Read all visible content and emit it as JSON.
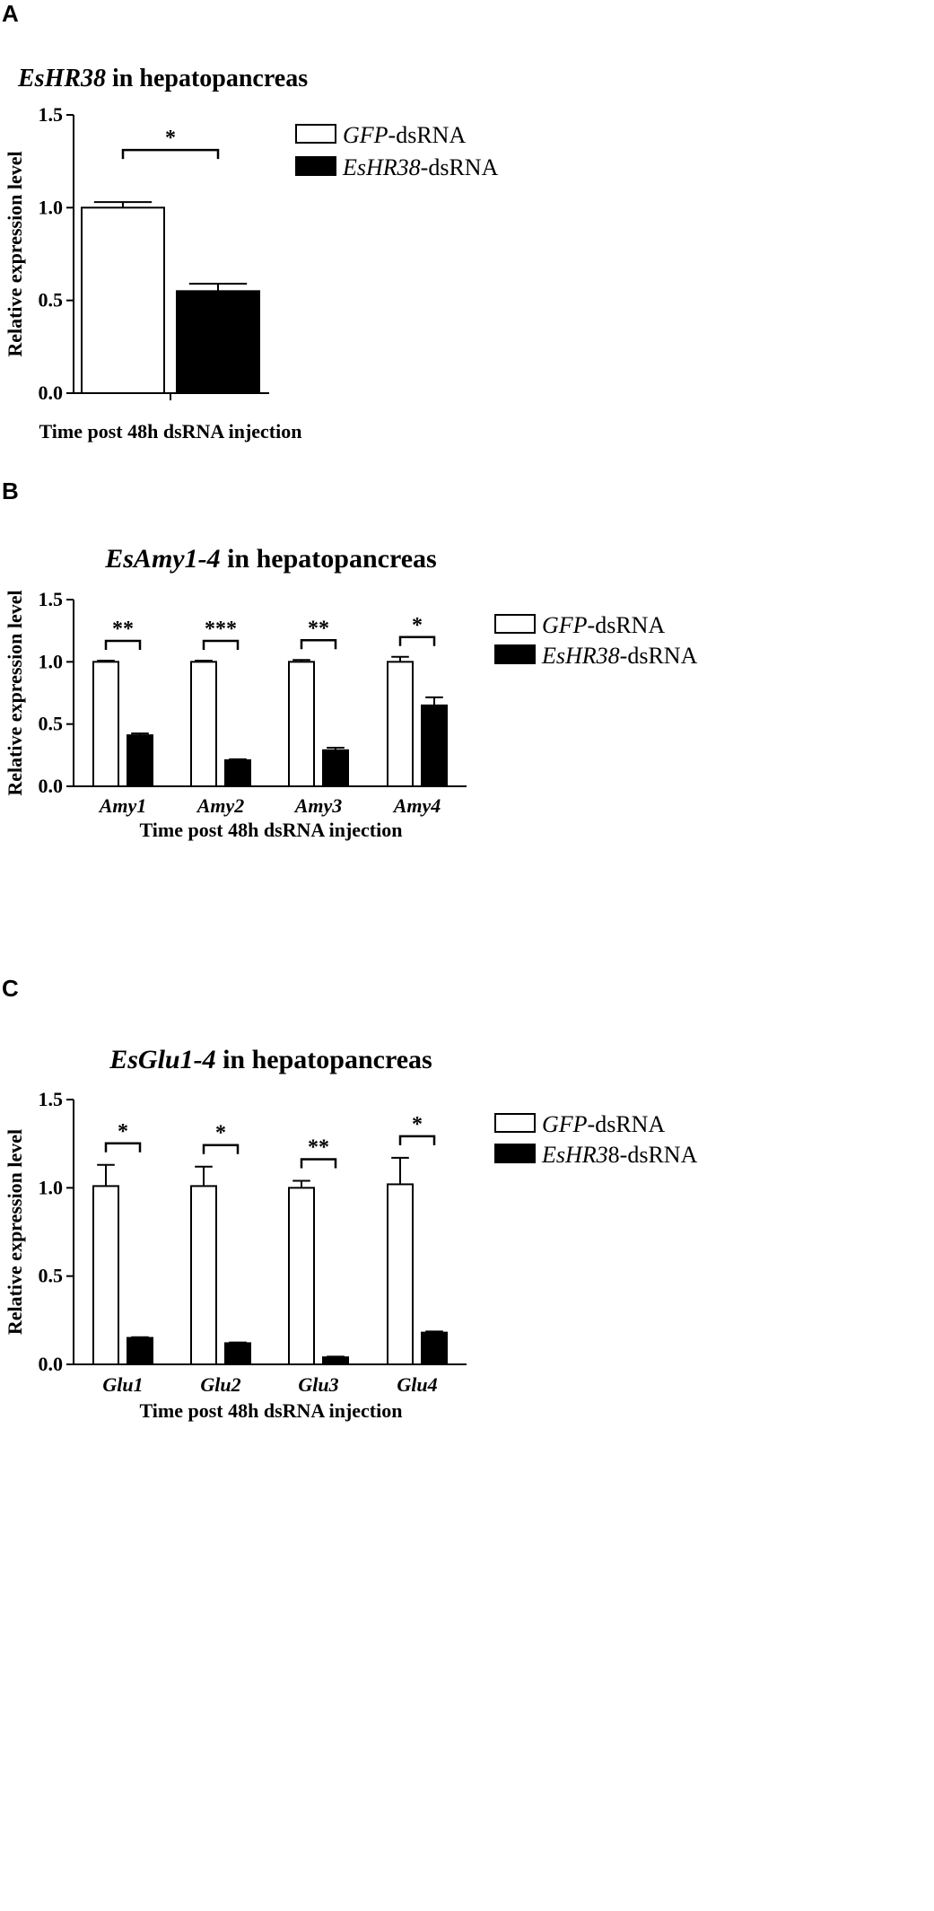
{
  "chart_data": [
    {
      "panel": "A",
      "type": "bar",
      "title": "EsHR38 in hepatopancreas",
      "title_italic_part": "EsHR38",
      "title_plain_part": " in hepatopancreas",
      "xlabel": "Time post 48h dsRNA injection",
      "ylabel": "Relative expression level",
      "ylim": [
        0,
        1.5
      ],
      "yticks": [
        "0.0",
        "0.5",
        "1.0",
        "1.5"
      ],
      "categories": [
        ""
      ],
      "series": [
        {
          "name": "GFP-dsRNA",
          "values": [
            1.0
          ],
          "errors": [
            0.03
          ],
          "fill": "#ffffff"
        },
        {
          "name": "EsHR38-dsRNA",
          "values": [
            0.55
          ],
          "errors": [
            0.04
          ],
          "fill": "#000000"
        }
      ],
      "significance": [
        "*"
      ],
      "legend": [
        {
          "italic": "GFP",
          "plain": "-dsRNA",
          "fill": "#ffffff"
        },
        {
          "italic": "EsHR38",
          "plain": "-dsRNA",
          "fill": "#000000"
        }
      ],
      "legend_position": "top-right",
      "grid": false
    },
    {
      "panel": "B",
      "type": "bar",
      "title": "EsAmy1-4 in hepatopancreas",
      "title_italic_part": "EsAmy1-4",
      "title_plain_part": " in hepatopancreas",
      "xlabel": "Time post 48h dsRNA injection",
      "ylabel": "Relative expression level",
      "ylim": [
        0,
        1.5
      ],
      "yticks": [
        "0.0",
        "0.5",
        "1.0",
        "1.5"
      ],
      "categories": [
        "Amy1",
        "Amy2",
        "Amy3",
        "Amy4"
      ],
      "series": [
        {
          "name": "GFP-dsRNA",
          "values": [
            1.0,
            1.0,
            1.0,
            1.0
          ],
          "errors": [
            0.01,
            0.01,
            0.015,
            0.04
          ],
          "fill": "#ffffff"
        },
        {
          "name": "EsHR38-dsRNA",
          "values": [
            0.41,
            0.21,
            0.29,
            0.65
          ],
          "errors": [
            0.015,
            0.007,
            0.02,
            0.065
          ],
          "fill": "#000000"
        }
      ],
      "significance": [
        "**",
        "***",
        "**",
        "*"
      ],
      "legend": [
        {
          "italic": "GFP",
          "plain": "-dsRNA",
          "fill": "#ffffff"
        },
        {
          "italic": "EsHR38",
          "plain": "-dsRNA",
          "fill": "#000000"
        }
      ],
      "legend_position": "top-right",
      "grid": false
    },
    {
      "panel": "C",
      "type": "bar",
      "title": "EsGlu1-4 in hepatopancreas",
      "title_italic_part": "EsGlu1-4",
      "title_plain_part": " in hepatopancreas",
      "xlabel": "Time post 48h dsRNA injection",
      "ylabel": "Relative expression level",
      "ylim": [
        0,
        1.5
      ],
      "yticks": [
        "0.0",
        "0.5",
        "1.0",
        "1.5"
      ],
      "categories": [
        "Glu1",
        "Glu2",
        "Glu3",
        "Glu4"
      ],
      "series": [
        {
          "name": "GFP-dsRNA",
          "values": [
            1.01,
            1.01,
            1.0,
            1.02
          ],
          "errors": [
            0.12,
            0.11,
            0.04,
            0.15
          ],
          "fill": "#ffffff"
        },
        {
          "name": "EsHR38-dsRNA",
          "values": [
            0.15,
            0.12,
            0.04,
            0.18
          ],
          "errors": [
            0.004,
            0.004,
            0.004,
            0.006
          ],
          "fill": "#000000"
        }
      ],
      "significance": [
        "*",
        "*",
        "**",
        "*"
      ],
      "legend": [
        {
          "italic": "GFP",
          "plain": "-dsRNA",
          "fill": "#ffffff"
        },
        {
          "italic": "EsHR3",
          "plain": "8-dsRNA",
          "fill": "#000000"
        }
      ],
      "legend_position": "top-right",
      "grid": false
    }
  ]
}
